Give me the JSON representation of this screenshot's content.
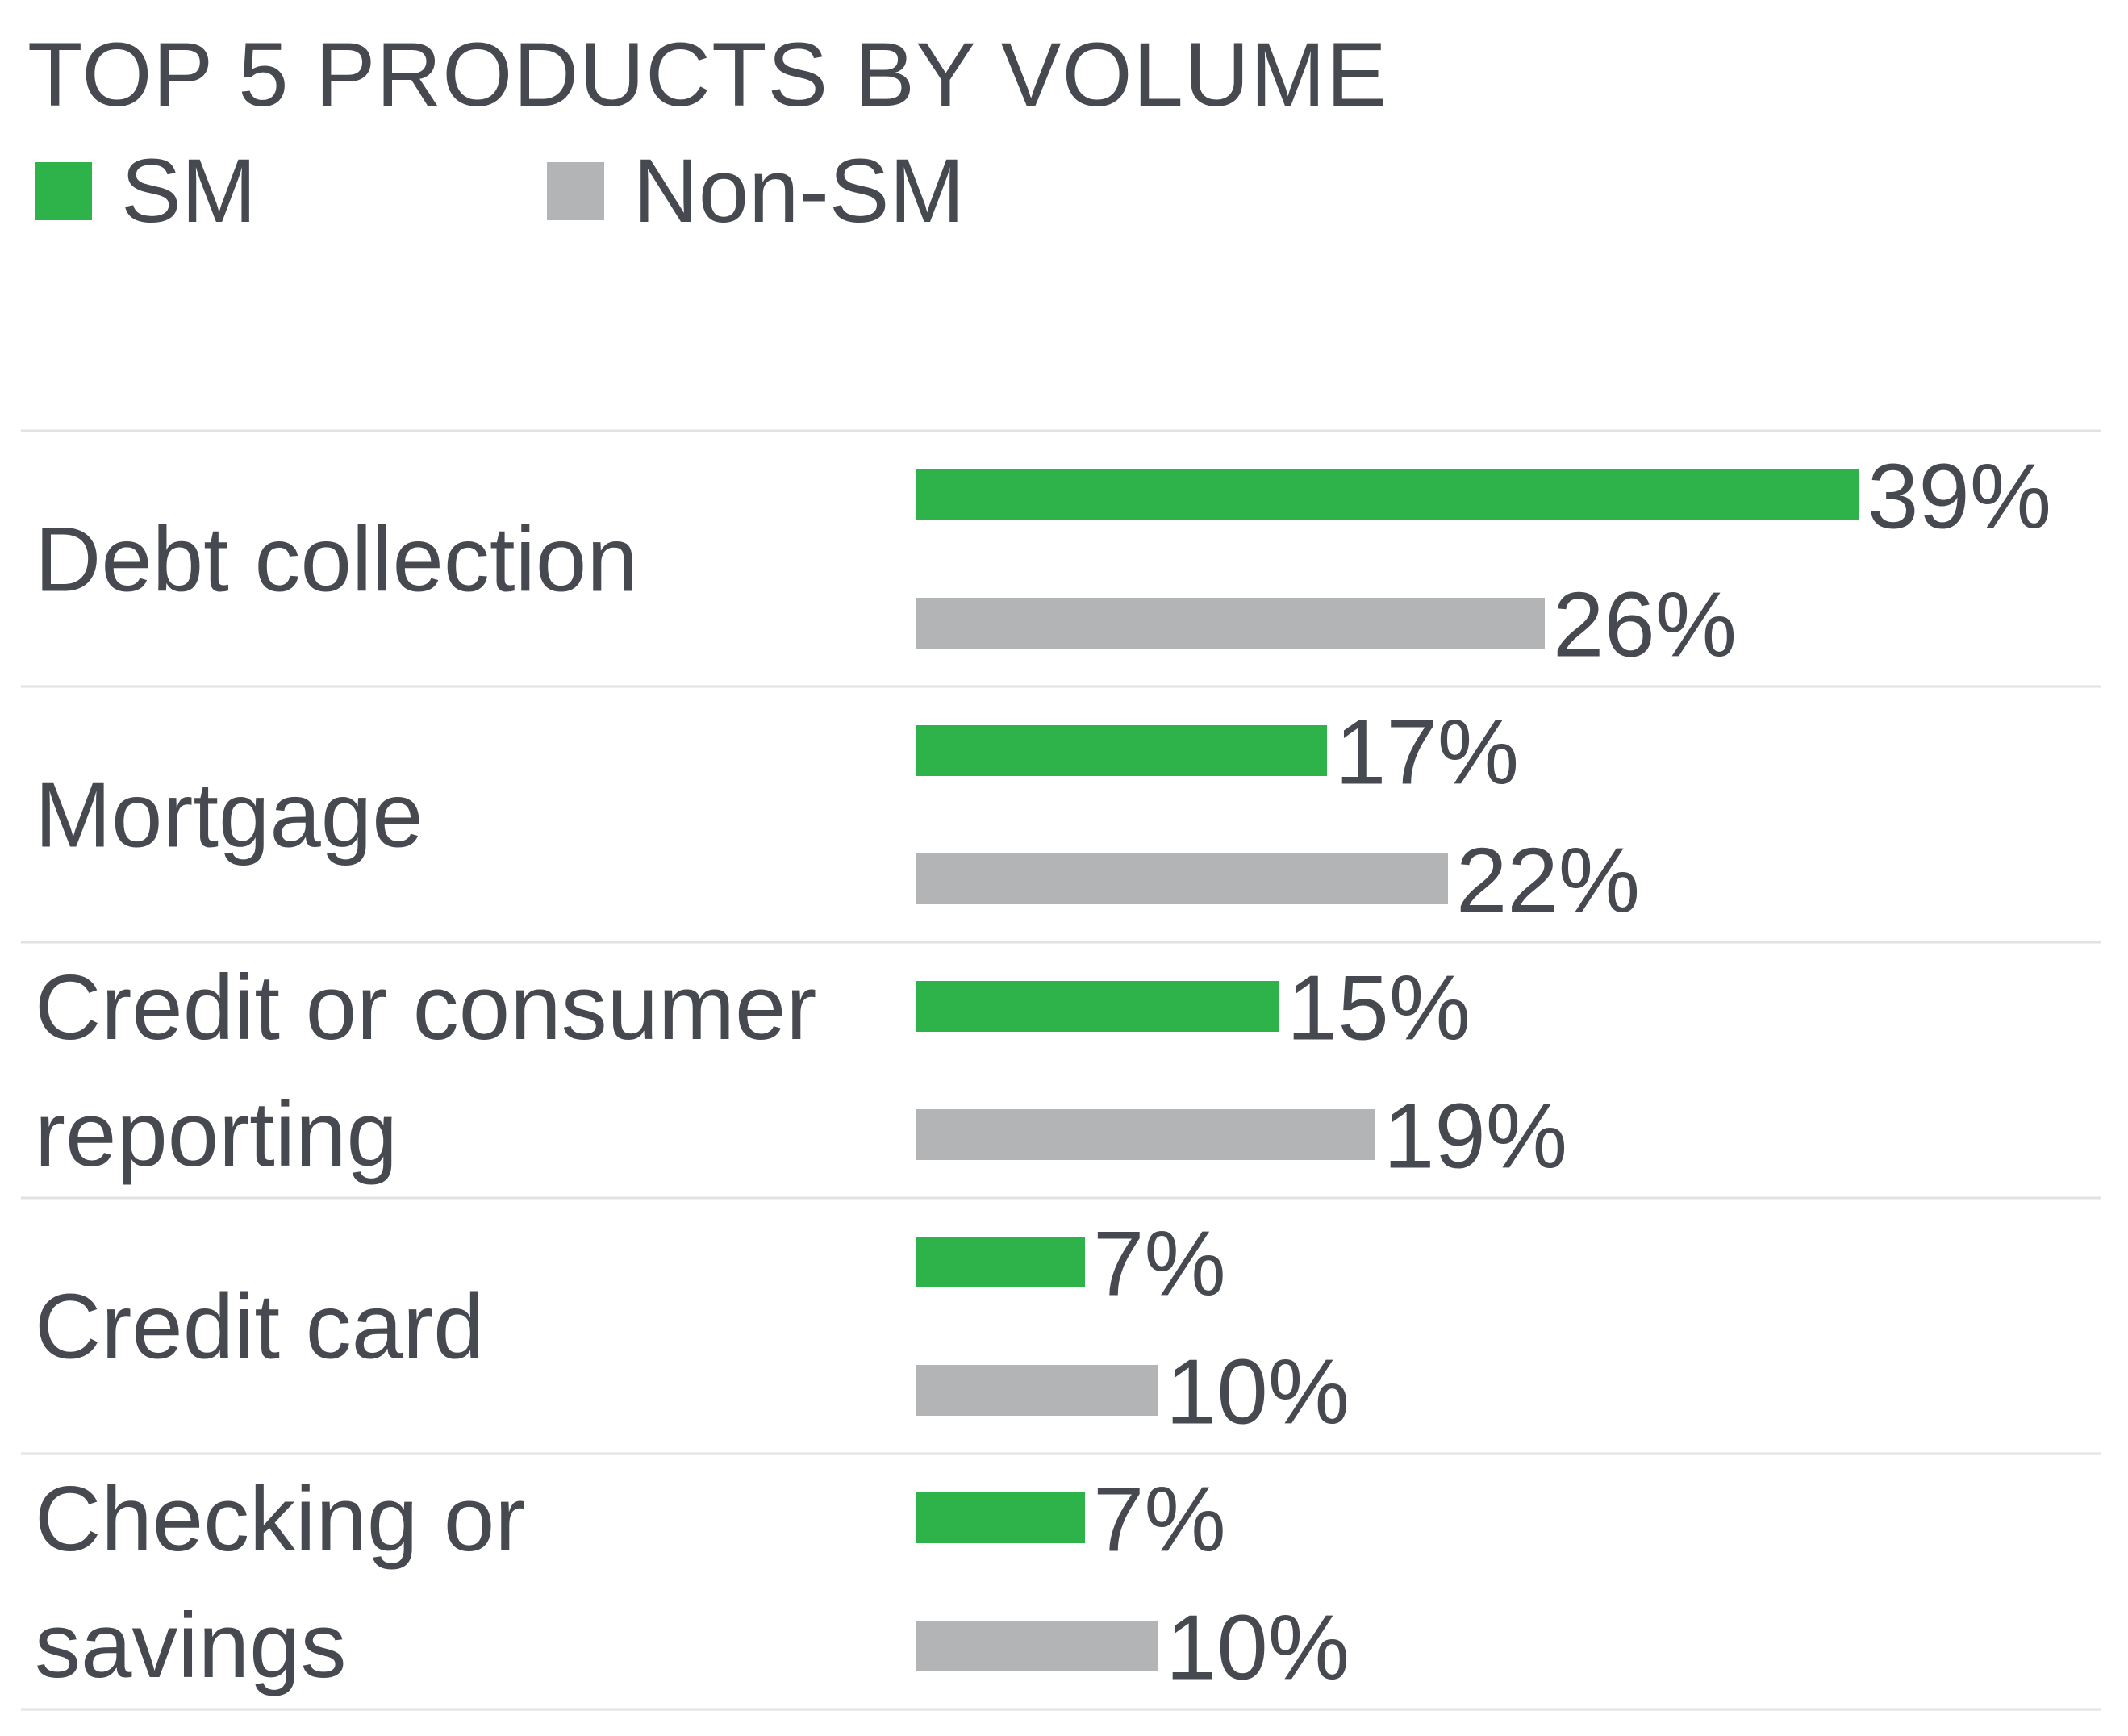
{
  "chart_data": {
    "type": "bar",
    "orientation": "horizontal",
    "title": "TOP 5 PRODUCTS BY VOLUME",
    "categories": [
      [
        "Debt collection"
      ],
      [
        "Mortgage"
      ],
      [
        "Credit or consumer",
        "reporting"
      ],
      [
        "Credit card"
      ],
      [
        "Checking or",
        "savings"
      ]
    ],
    "series": [
      {
        "name": "SM",
        "color": "#2db34a",
        "values": [
          39,
          17,
          15,
          7,
          7
        ]
      },
      {
        "name": "Non-SM",
        "color": "#b3b4b6",
        "values": [
          26,
          22,
          19,
          10,
          10
        ]
      }
    ],
    "value_suffix": "%",
    "legend_position": "top-left",
    "grid": false,
    "row_separators": true
  }
}
